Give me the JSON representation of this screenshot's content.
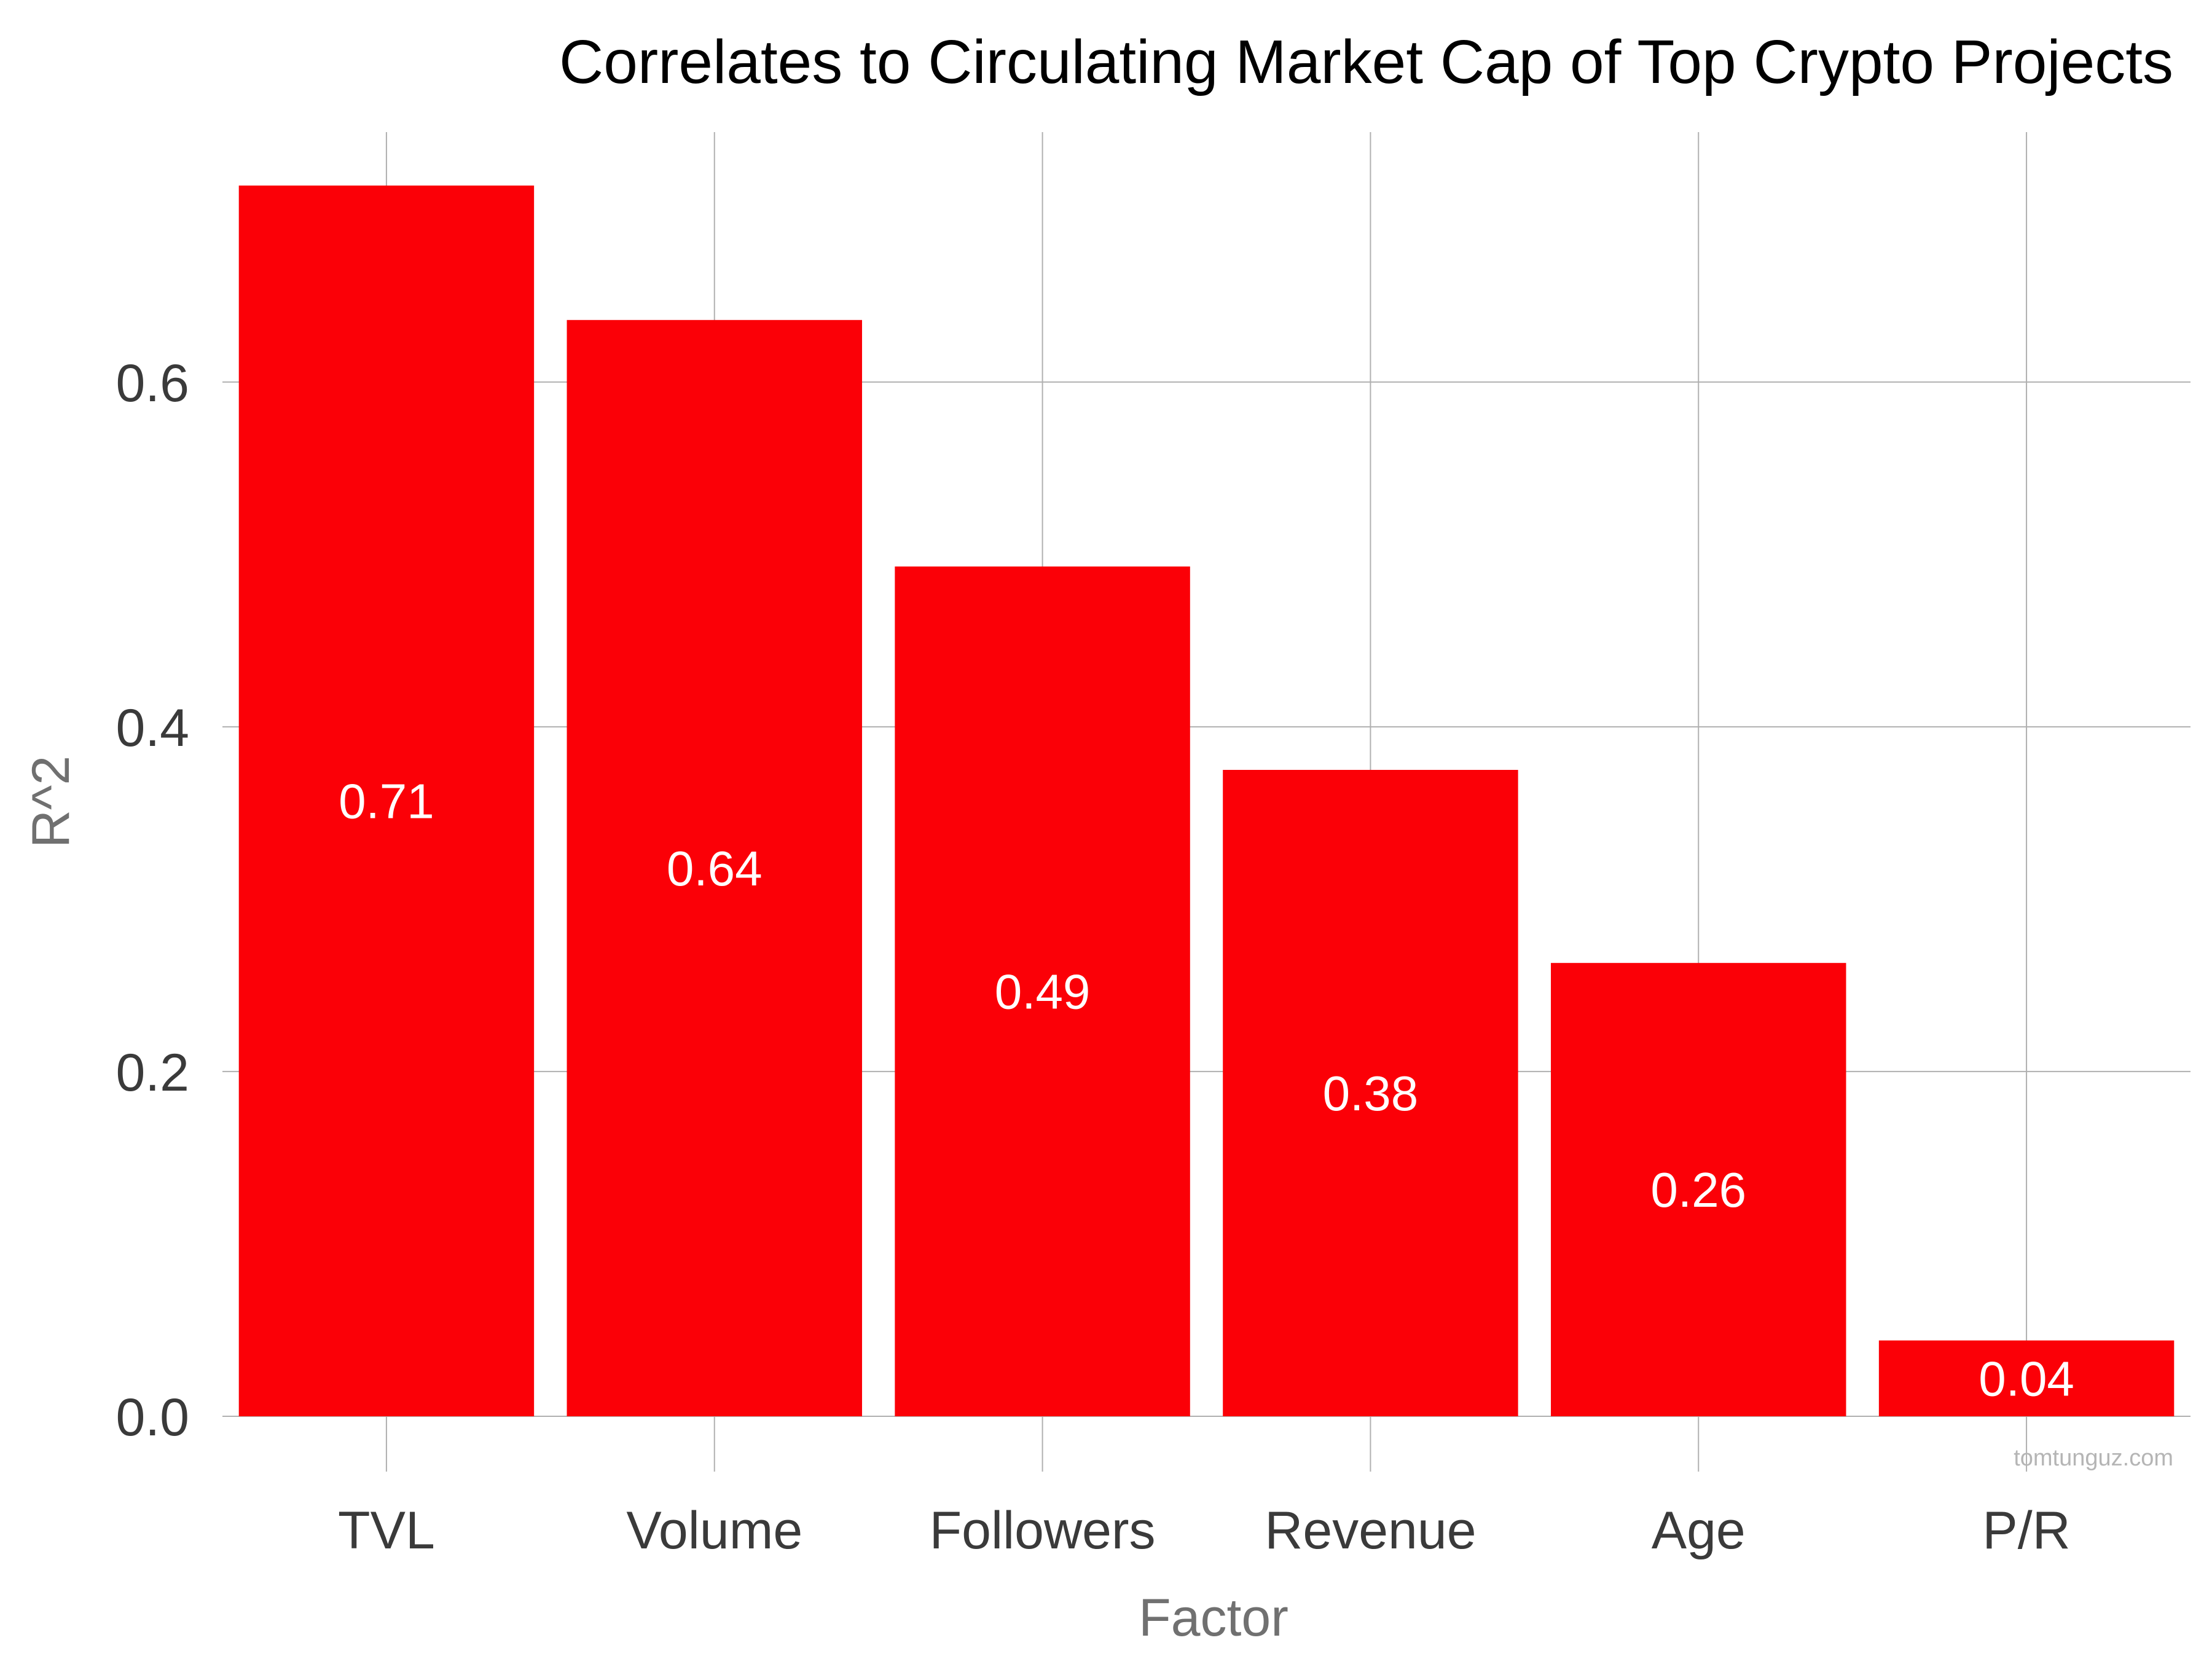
{
  "chart_data": {
    "type": "bar",
    "title": "Correlates to Circulating Market Cap of Top Crypto Projects",
    "xlabel": "Factor",
    "ylabel": "R^2",
    "categories": [
      "TVL",
      "Volume",
      "Followers",
      "Revenue",
      "Age",
      "P/R"
    ],
    "values": [
      0.714,
      0.636,
      0.493,
      0.375,
      0.263,
      0.044
    ],
    "value_labels": [
      "0.71",
      "0.64",
      "0.49",
      "0.38",
      "0.26",
      "0.04"
    ],
    "y_ticks": [
      0.0,
      0.2,
      0.4,
      0.6
    ],
    "y_tick_labels": [
      "0.0",
      "0.2",
      "0.4",
      "0.6"
    ],
    "ylim": [
      0,
      0.745
    ],
    "grid": true,
    "bar_color": "#fb0007",
    "watermark": "tomtunguz.com"
  }
}
